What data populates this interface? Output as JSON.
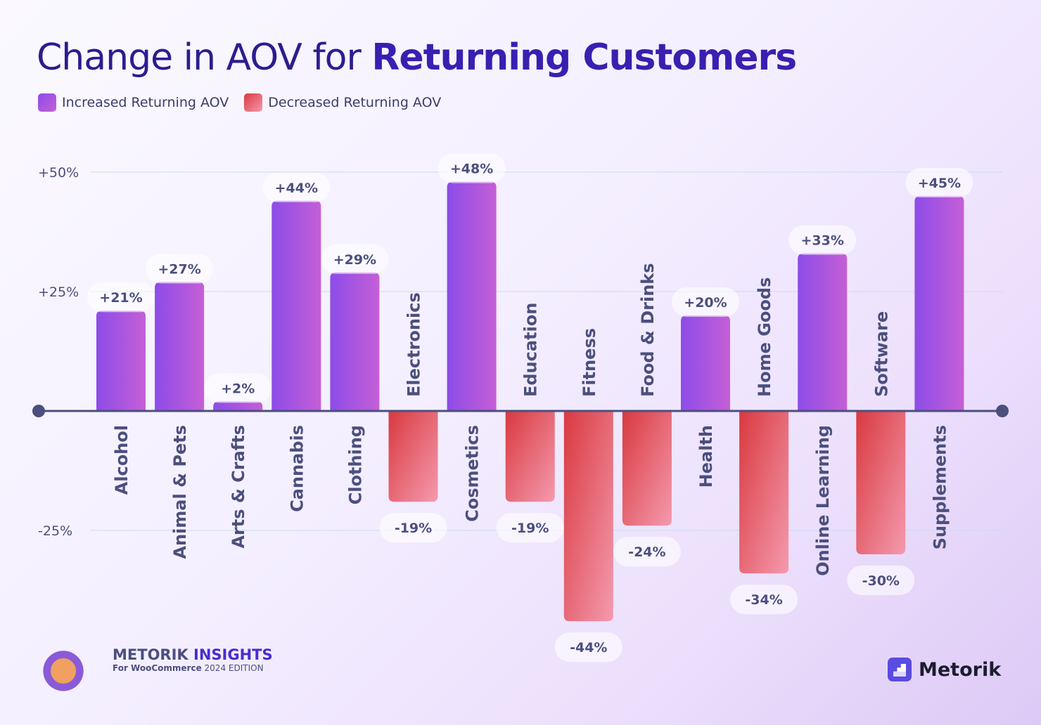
{
  "chart_data": {
    "type": "bar",
    "title_regular": "Change in AOV for ",
    "title_bold": "Returning Customers",
    "legend": [
      {
        "label": "Increased Returning AOV",
        "color": "#9b4be6"
      },
      {
        "label": "Decreased Returning AOV",
        "color": "#e5575c"
      }
    ],
    "legend_placement": "top-left",
    "categories": [
      "Alcohol",
      "Animal & Pets",
      "Arts & Crafts",
      "Cannabis",
      "Clothing",
      "Electronics",
      "Cosmetics",
      "Education",
      "Fitness",
      "Food & Drinks",
      "Health",
      "Home Goods",
      "Online Learning",
      "Software",
      "Supplements"
    ],
    "values": [
      21,
      27,
      2,
      44,
      29,
      -19,
      48,
      -19,
      -44,
      -24,
      20,
      -34,
      33,
      -30,
      45
    ],
    "value_labels": [
      "+21%",
      "+27%",
      "+2%",
      "+44%",
      "+29%",
      "-19%",
      "+48%",
      "-19%",
      "-44%",
      "-24%",
      "+20%",
      "-34%",
      "+33%",
      "-30%",
      "+45%"
    ],
    "y_ticks": [
      50,
      25,
      -25
    ],
    "y_tick_labels": [
      "+50%",
      "+25%",
      "-25%"
    ],
    "ylim": [
      -50,
      55
    ],
    "grid": true,
    "colors": {
      "positive_top": "#8d4ce8",
      "positive_bottom": "#c55fd6",
      "negative_top": "#d9393f",
      "negative_bottom": "#f49aae",
      "axis": "#4b4f7e"
    }
  },
  "footer": {
    "brand_first": "METORIK",
    "brand_second": "INSIGHTS",
    "sub_bold": "For WooCommerce",
    "sub_rest": " 2024 EDITION",
    "logo_text": "Metorik"
  }
}
